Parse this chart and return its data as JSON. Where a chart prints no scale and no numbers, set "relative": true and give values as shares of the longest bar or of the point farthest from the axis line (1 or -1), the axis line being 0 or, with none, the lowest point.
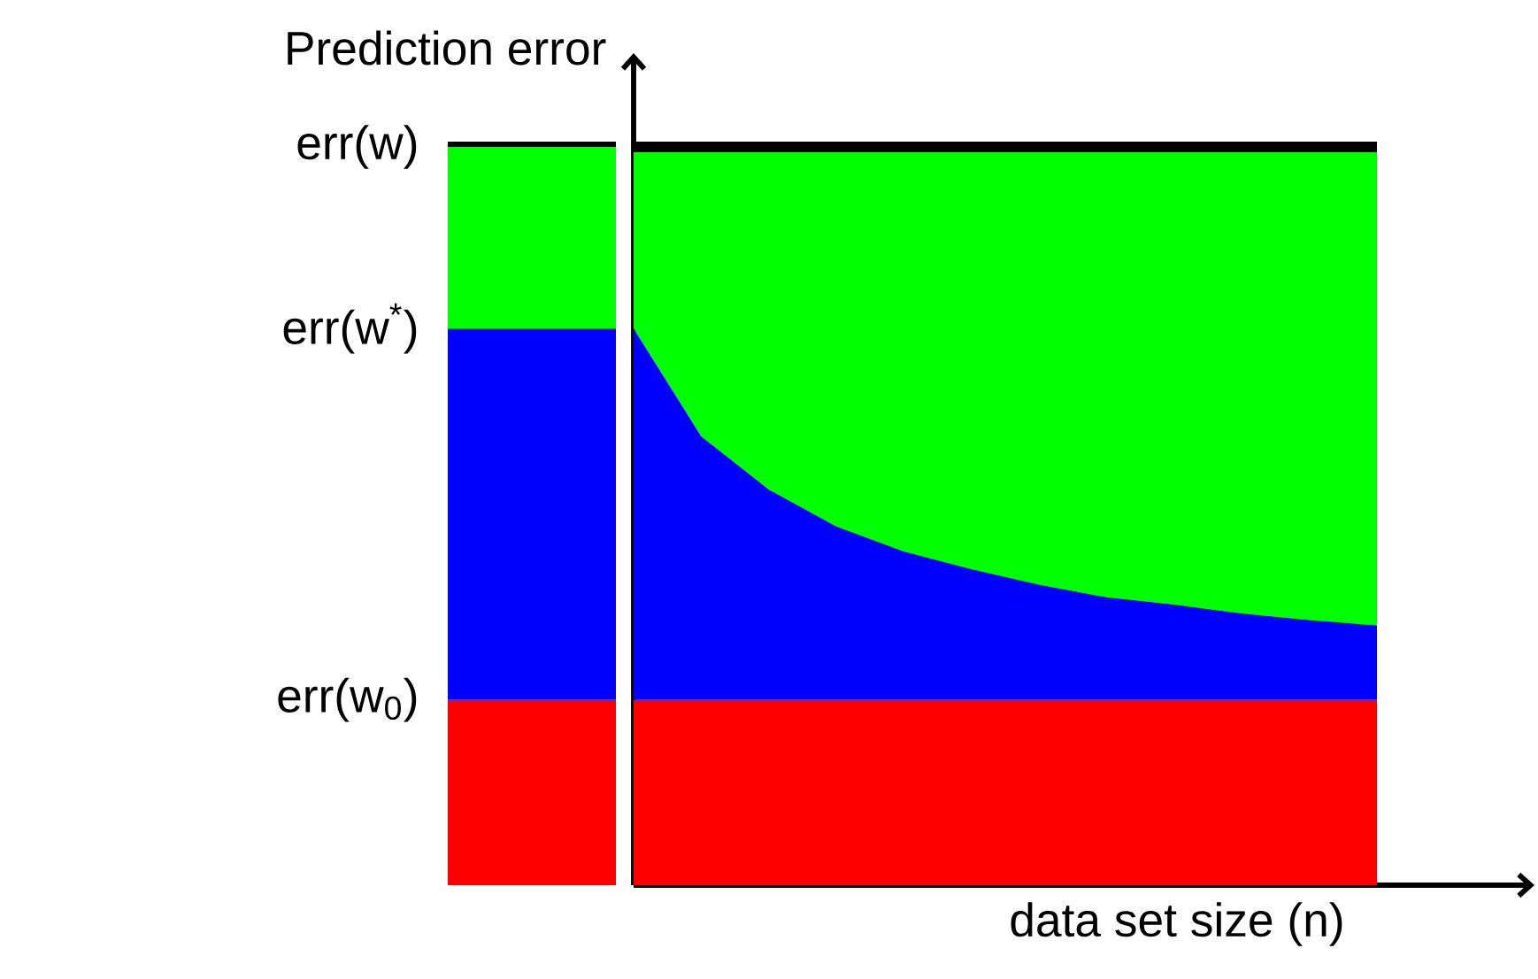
{
  "chart_data": [
    {
      "type": "bar",
      "stacked": true,
      "relative": true,
      "ylabel": "Prediction error",
      "categories": [
        null
      ],
      "annotations": [
        "err(w)",
        "err(w$^{*}$)",
        "err(w$_{0}$)"
      ],
      "series": [
        {
          "color": "#ff0000",
          "values": [
            0.251
          ]
        },
        {
          "color": "#0000ff",
          "values": [
            0.503
          ]
        },
        {
          "color": "#00ff00",
          "values": [
            0.246
          ]
        }
      ],
      "ref_lines": [
        {
          "axis": "y",
          "value": 1,
          "color": "#000000"
        }
      ]
    },
    {
      "type": "area",
      "relative": true,
      "xlabel": "data set size (n)",
      "categories": [
        null,
        null,
        null,
        null,
        null,
        null,
        null,
        null,
        null,
        null,
        null,
        null
      ],
      "series": [
        {
          "color": "#00ff00",
          "values": [
            1,
            1,
            1,
            1,
            1,
            1,
            1,
            1,
            1,
            1,
            1,
            1
          ]
        },
        {
          "color": "#0000ff",
          "values": [
            0.754,
            0.608,
            0.536,
            0.486,
            0.452,
            0.428,
            0.407,
            0.39,
            0.38,
            0.368,
            0.359,
            0.352
          ]
        },
        {
          "color": "#ff0000",
          "values": [
            0.251,
            0.251,
            0.251,
            0.251,
            0.251,
            0.251,
            0.251,
            0.251,
            0.251,
            0.251,
            0.251,
            0.251
          ]
        }
      ],
      "ref_lines": [
        {
          "axis": "y",
          "value": 1,
          "color": "#000000"
        }
      ]
    }
  ]
}
